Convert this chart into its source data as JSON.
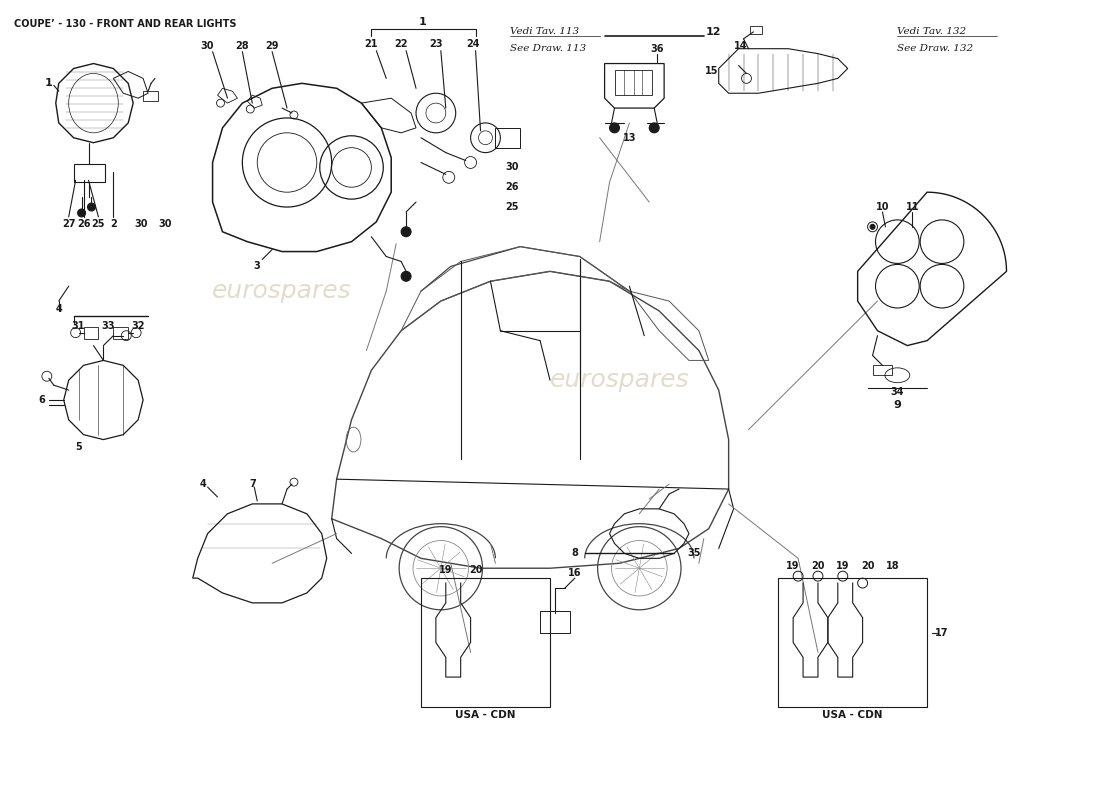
{
  "title": "COUPE’ - 130 - FRONT AND REAR LIGHTS",
  "bg_color": "#ffffff",
  "diagram_color": "#1a1a1a",
  "watermark_text1": "eurospares",
  "watermark_text2": "eurospares",
  "vedi_113_line1": "Vedi Tav. 113",
  "vedi_113_line2": "See Draw. 113",
  "vedi_132_line1": "Vedi Tav. 132",
  "vedi_132_line2": "See Draw. 132",
  "usa_cdn": "USA - CDN"
}
